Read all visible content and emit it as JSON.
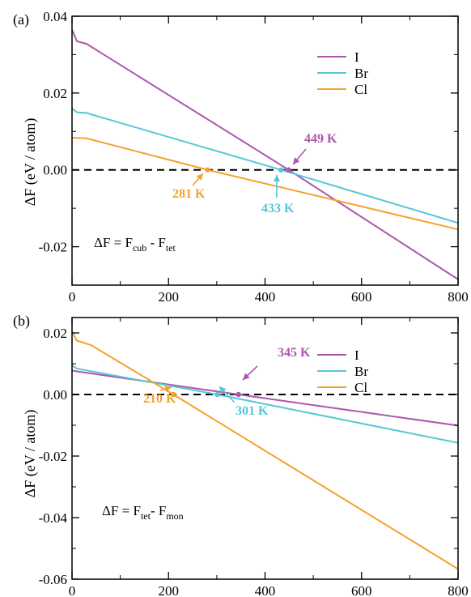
{
  "colors": {
    "I": "#ad56ad",
    "Br": "#56c7d6",
    "Cl": "#f5a12e",
    "axis": "#000000",
    "zero_line": "#000000"
  },
  "chart_data": [
    {
      "type": "line",
      "panel_label": "(a)",
      "ylabel": "ΔF (eV / atom)",
      "xlabel": "",
      "xlim": [
        0,
        800
      ],
      "ylim": [
        -0.03,
        0.04
      ],
      "x_ticks": [
        "0",
        "200",
        "400",
        "600",
        "800"
      ],
      "y_ticks": [
        "-0.02",
        "0.00",
        "0.02",
        "0.04"
      ],
      "y_tick_values": [
        -0.02,
        0.0,
        0.02,
        0.04
      ],
      "zero_line": "dashed",
      "legend": {
        "placement": "top-right",
        "entries": [
          "I",
          "Br",
          "Cl"
        ]
      },
      "formula": {
        "lhs": "ΔF = F",
        "sub1": "cub",
        "mid": " - F",
        "sub2": "tet"
      },
      "series": [
        {
          "name": "I",
          "color_key": "I",
          "x": [
            0,
            10,
            30,
            449,
            800
          ],
          "y": [
            0.0365,
            0.0335,
            0.0328,
            0.0,
            -0.0285
          ]
        },
        {
          "name": "Br",
          "color_key": "Br",
          "x": [
            0,
            10,
            30,
            433,
            800
          ],
          "y": [
            0.016,
            0.015,
            0.0148,
            0.0,
            -0.0138
          ]
        },
        {
          "name": "Cl",
          "color_key": "Cl",
          "x": [
            0,
            10,
            30,
            281,
            800
          ],
          "y": [
            0.0084,
            0.0083,
            0.0082,
            0.0,
            -0.0155
          ]
        }
      ],
      "annotations": [
        {
          "text": "449 K",
          "series": "I",
          "x": 449
        },
        {
          "text": "433 K",
          "series": "Br",
          "x": 433
        },
        {
          "text": "281 K",
          "series": "Cl",
          "x": 281
        }
      ]
    },
    {
      "type": "line",
      "panel_label": "(b)",
      "ylabel": "ΔF (eV / atom)",
      "xlabel": "",
      "xlim": [
        0,
        800
      ],
      "ylim": [
        -0.06,
        0.025
      ],
      "x_ticks": [
        "0",
        "200",
        "400",
        "600",
        "800"
      ],
      "y_ticks": [
        "-0.06",
        "-0.04",
        "-0.02",
        "0.00",
        "0.02"
      ],
      "y_tick_values": [
        -0.06,
        -0.04,
        -0.02,
        0.0,
        0.02
      ],
      "zero_line": "dashed",
      "legend": {
        "placement": "top-right",
        "entries": [
          "I",
          "Br",
          "Cl"
        ]
      },
      "formula": {
        "lhs": "ΔF = F",
        "sub1": "tet",
        "mid": "- F",
        "sub2": "mon"
      },
      "series": [
        {
          "name": "I",
          "color_key": "I",
          "x": [
            0,
            10,
            345,
            800
          ],
          "y": [
            0.0078,
            0.0075,
            0.0,
            -0.0101
          ]
        },
        {
          "name": "Br",
          "color_key": "Br",
          "x": [
            0,
            10,
            301,
            800
          ],
          "y": [
            0.0095,
            0.0084,
            0.0,
            -0.0157
          ]
        },
        {
          "name": "Cl",
          "color_key": "Cl",
          "x": [
            0,
            10,
            40,
            210,
            800
          ],
          "y": [
            0.0205,
            0.0175,
            0.016,
            0.0,
            -0.0567
          ]
        }
      ],
      "annotations": [
        {
          "text": "345 K",
          "series": "I",
          "x": 345
        },
        {
          "text": "301 K",
          "series": "Br",
          "x": 301
        },
        {
          "text": "210 K",
          "series": "Cl",
          "x": 210
        }
      ]
    }
  ]
}
